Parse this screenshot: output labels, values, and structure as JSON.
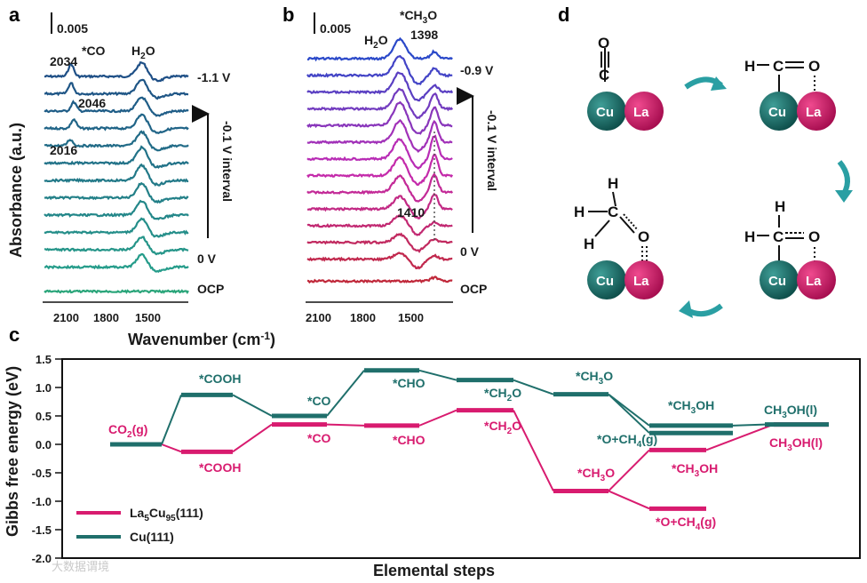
{
  "panels": {
    "a": {
      "letter": "a",
      "scale_bar_label": "0.005",
      "peak_labels": {
        "co_label": "*CO",
        "h2o_label": "H2O",
        "p2034": "2034",
        "p2046": "2046",
        "p2016": "2016"
      },
      "potential_labels": {
        "top": "-1.1 V",
        "bottom": "0 V",
        "ocp": "OCP",
        "interval": "-0.1 V interval"
      },
      "x_ticks": [
        "2100",
        "1800",
        "1500"
      ]
    },
    "b": {
      "letter": "b",
      "scale_bar_label": "0.005",
      "peak_labels": {
        "h2o_label": "H2O",
        "ch3o_label": "*CH3O",
        "p1398": "1398",
        "p1410": "1410"
      },
      "potential_labels": {
        "top": "-0.9 V",
        "bottom": "0 V",
        "ocp": "OCP",
        "interval": "-0.1 V interval"
      },
      "x_ticks": [
        "2100",
        "1800",
        "1500"
      ]
    },
    "ab_shared": {
      "ylabel": "Absorbance (a.u.)",
      "xlabel": "Wavenumber (cm-1)"
    },
    "d": {
      "letter": "d",
      "ball_labels": {
        "cu": "Cu",
        "la": "La"
      },
      "atoms": {
        "C": "C",
        "O": "O",
        "H": "H"
      }
    }
  },
  "colors": {
    "teal": "#1f6f6b",
    "pink": "#d81b6f",
    "arrow": "#2a9fa3"
  },
  "chart_data": {
    "type": "line",
    "letter": "c",
    "xlabel": "Elemental steps",
    "ylabel": "Gibbs free energy (eV)",
    "ylim": [
      -2.0,
      1.5
    ],
    "yticks": [
      "1.5",
      "1.0",
      "0.5",
      "0.0",
      "-0.5",
      "-1.0",
      "-1.5",
      "-2.0"
    ],
    "legend_position": "bottom-left",
    "series": [
      {
        "name": "La5Cu95(111)",
        "color": "#d81b6f",
        "steps": [
          {
            "label": "CO2(g)",
            "value": 0.0
          },
          {
            "label": "*COOH",
            "value": -0.13
          },
          {
            "label": "*CO",
            "value": 0.35
          },
          {
            "label": "*CHO",
            "value": 0.33
          },
          {
            "label": "*CH2O",
            "value": 0.6
          },
          {
            "label": "*CH3O",
            "value": -0.82
          },
          {
            "label": "*O+CH4(g)",
            "value": -1.13
          },
          {
            "label": "*CH3OH",
            "value": -0.1
          },
          {
            "label": "CH3OH(l)",
            "value": 0.35
          }
        ]
      },
      {
        "name": "Cu(111)",
        "color": "#1f6f6b",
        "steps": [
          {
            "label": "CO2(g)",
            "value": 0.0
          },
          {
            "label": "*COOH",
            "value": 0.87
          },
          {
            "label": "*CO",
            "value": 0.5
          },
          {
            "label": "*CHO",
            "value": 1.3
          },
          {
            "label": "*CH2O",
            "value": 1.13
          },
          {
            "label": "*CH3O",
            "value": 0.88
          },
          {
            "label": "*CH3OH",
            "value": 0.33
          },
          {
            "label": "*O+CH4(g)",
            "value": 0.2
          },
          {
            "label": "CH3OH(l)",
            "value": 0.35
          }
        ]
      }
    ],
    "annotations": {
      "co2": "CO2(g)",
      "teal_cooh": "*COOH",
      "teal_co": "*CO",
      "teal_cho": "*CHO",
      "teal_ch2o": "*CH2O",
      "teal_ch3o": "*CH3O",
      "teal_ch3oh": "*CH3OH",
      "teal_o_ch4": "*O+CH4(g)",
      "teal_final": "CH3OH(l)",
      "pink_cooh": "*COOH",
      "pink_co": "*CO",
      "pink_cho": "*CHO",
      "pink_ch2o": "*CH2O",
      "pink_ch3o": "*CH3O",
      "pink_ch3oh": "*CH3OH",
      "pink_o_ch4": "*O+CH4(g)",
      "pink_final": "CH3OH(l)"
    }
  },
  "watermark": "大数据谓境"
}
